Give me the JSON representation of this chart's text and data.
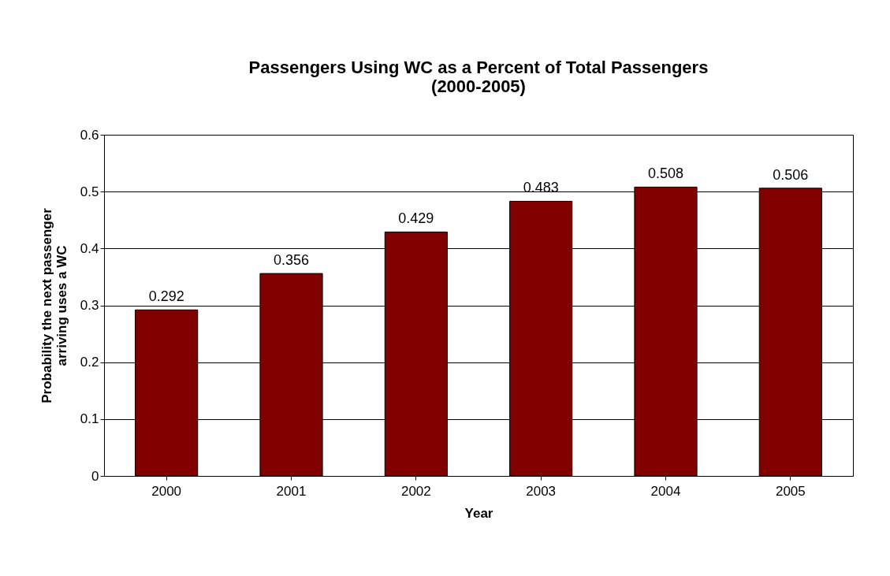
{
  "chart_data": {
    "type": "bar",
    "title": "Passengers Using WC as a Percent of Total Passengers\n(2000-2005)",
    "xlabel": "Year",
    "ylabel": "Probability the next passenger\narriving uses a WC",
    "categories": [
      "2000",
      "2001",
      "2002",
      "2003",
      "2004",
      "2005"
    ],
    "series": [
      {
        "color": "#800000",
        "values": [
          0.292,
          0.356,
          0.429,
          0.483,
          0.508,
          0.506
        ]
      }
    ],
    "ylim": [
      0,
      0.6
    ],
    "yticks": [
      0,
      0.1,
      0.2,
      0.3,
      0.4,
      0.5,
      0.6
    ],
    "grid": "y",
    "data_labels": true
  }
}
